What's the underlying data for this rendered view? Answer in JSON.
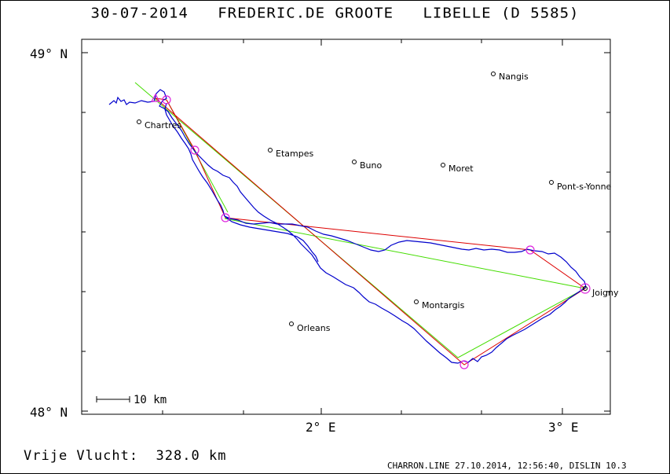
{
  "header": {
    "date": "30-07-2014",
    "pilot": "FREDERIC.DE GROOTE",
    "glider": "LIBELLE (D 5585)"
  },
  "axes": {
    "lat_labels": [
      "49° N",
      "48° N"
    ],
    "lon_labels": [
      "2° E",
      "3° E"
    ]
  },
  "scale_bar": {
    "label": "10 km"
  },
  "cities": [
    {
      "name": "Nangis"
    },
    {
      "name": "Chartres"
    },
    {
      "name": "Etampes"
    },
    {
      "name": "Buno"
    },
    {
      "name": "Moret"
    },
    {
      "name": "Pont-s-Yonne"
    },
    {
      "name": "Joigny"
    },
    {
      "name": "Montargis"
    },
    {
      "name": "Orleans"
    }
  ],
  "colors": {
    "track": "#0000cc",
    "legs": "#dd0000",
    "declared": "#44dd00",
    "turnpoints": "#dd22dd"
  },
  "footer": {
    "distance_label": "Vrije Vlucht:",
    "distance_value": "328.0 km",
    "software": "CHARRON.LINE 27.10.2014, 12:56:40, DISLIN 10.3"
  }
}
